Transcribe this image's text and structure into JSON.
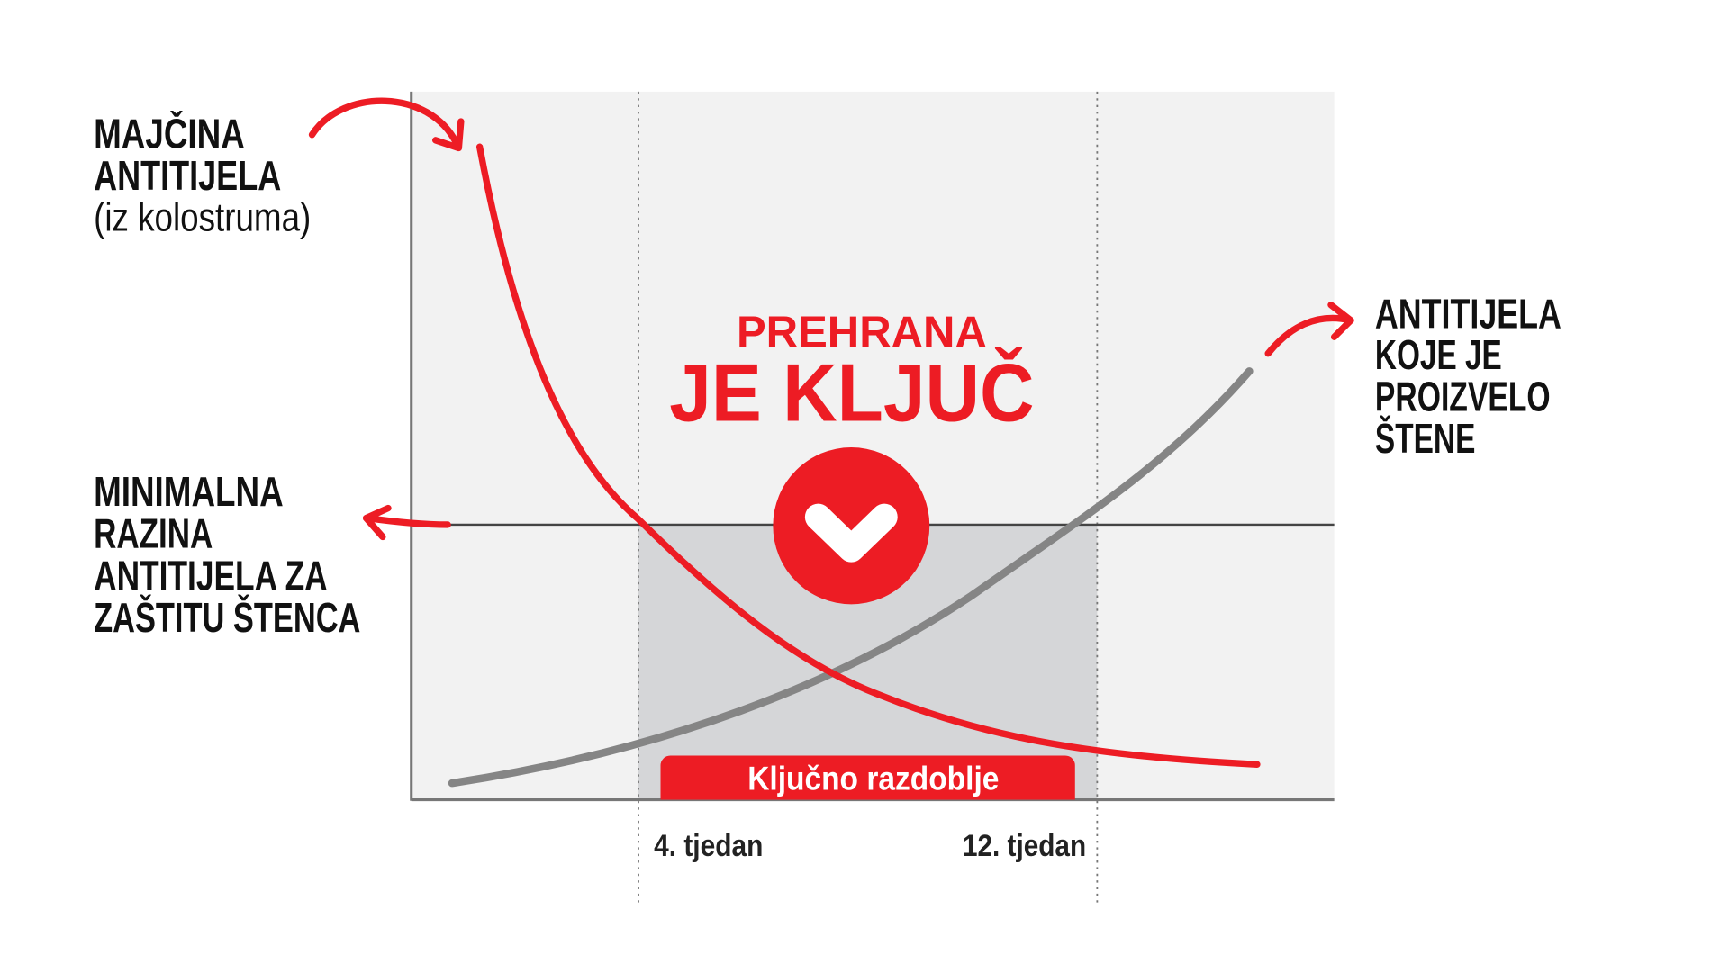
{
  "colors": {
    "accent_red": "#ed1c24",
    "curve_grey": "#858585",
    "plot_bg": "#f2f2f2",
    "critical_zone": "#d5d6d8"
  },
  "labels": {
    "maternal": [
      "MAJČINA",
      "ANTITIJELA",
      "(iz kolostruma)"
    ],
    "minimum": [
      "MINIMALNA",
      "RAZINA",
      "ANTITIJELA ZA",
      "ZAŠTITU ŠTENCA"
    ],
    "puppy": [
      "ANTITIJELA",
      "KOJE JE",
      "PROIZVELO",
      "ŠTENE"
    ]
  },
  "headline": {
    "line1": "PREHRANA",
    "line2": "JE KLJUČ"
  },
  "badge_icon": "checkmark-icon",
  "critical_period": "Ključno razdoblje",
  "x_ticks": [
    "4. tjedan",
    "12. tjedan"
  ]
}
